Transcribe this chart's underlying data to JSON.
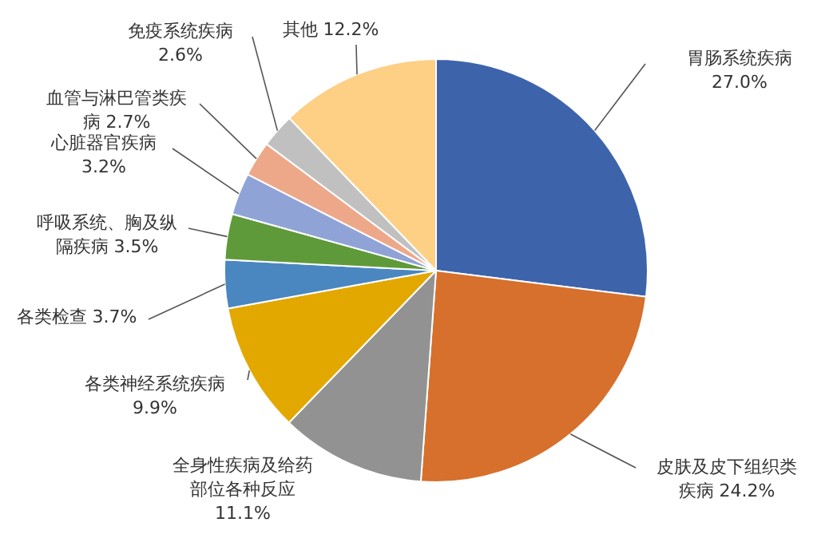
{
  "chart_data": {
    "type": "pie",
    "categories": [
      "胃肠系统疾病",
      "皮肤及皮下组织类疾病",
      "全身性疾病及给药部位各种反应",
      "各类神经系统疾病",
      "各类检查",
      "呼吸系统、胸及纵隔疾病",
      "心脏器官疾病",
      "血管与淋巴管类疾病",
      "免疫系统疾病",
      "其他"
    ],
    "values": [
      27.0,
      24.2,
      11.1,
      9.9,
      3.7,
      3.5,
      3.2,
      2.7,
      2.6,
      12.2
    ],
    "value_labels": [
      "27.0%",
      "24.2%",
      "11.1%",
      "9.9%",
      "3.7%",
      "3.5%",
      "3.2%",
      "2.7%",
      "2.6%",
      "12.2%"
    ],
    "colors": [
      "#3d64ab",
      "#d6702c",
      "#929292",
      "#e2a800",
      "#4a86c0",
      "#5f9a3a",
      "#8fa3d6",
      "#eda88a",
      "#c0c0c0",
      "#fdd085"
    ],
    "legend": false
  }
}
